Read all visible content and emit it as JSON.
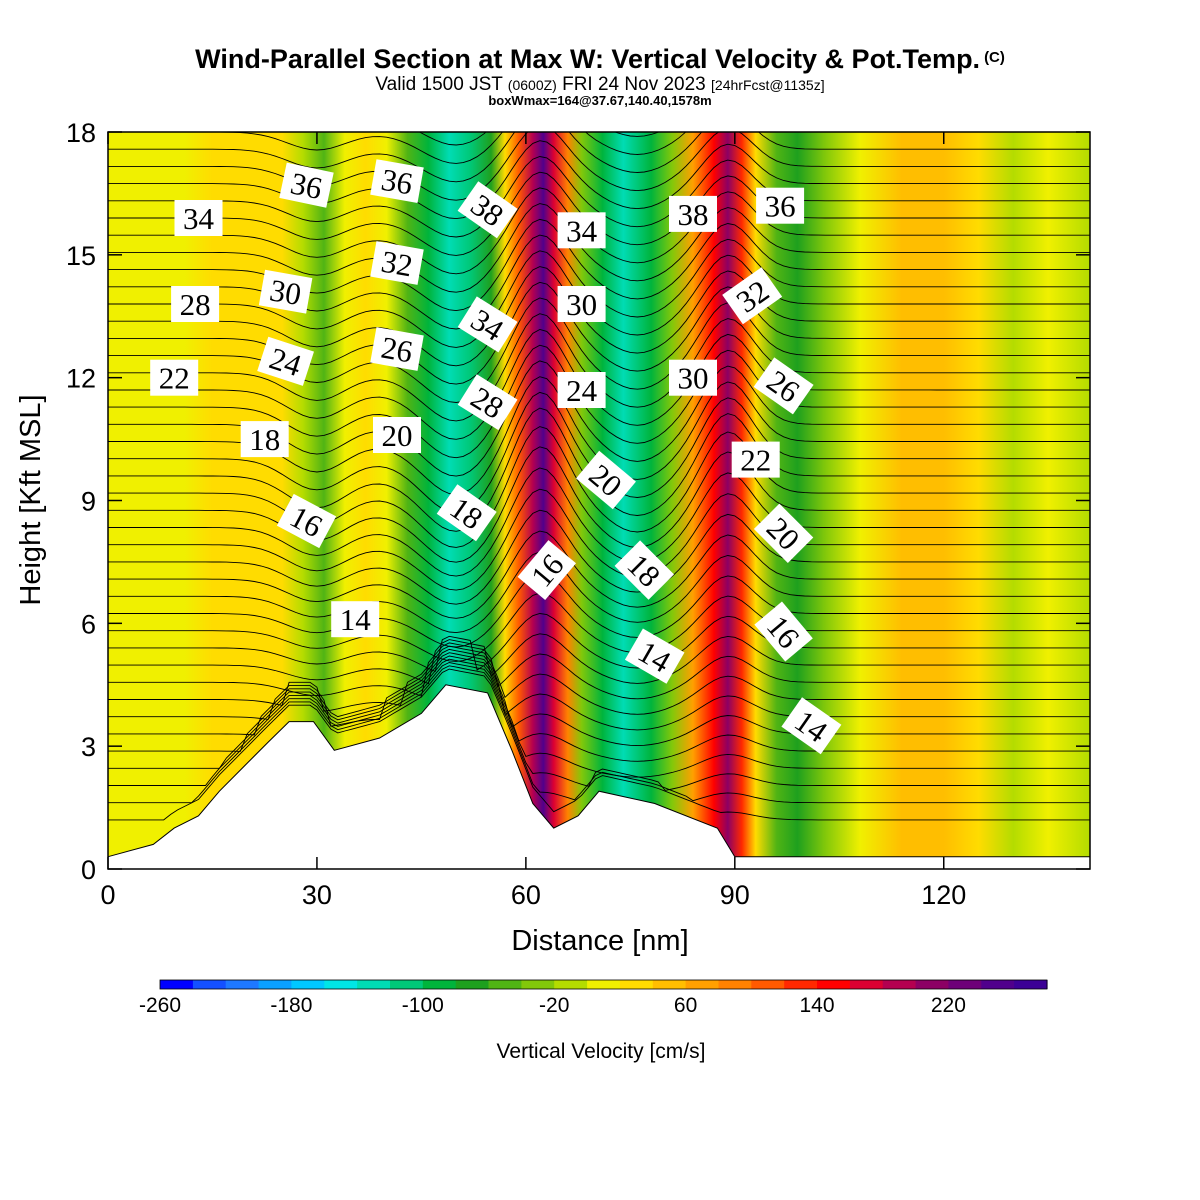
{
  "title": "Wind-Parallel Section at Max W: Vertical Velocity & Pot.Temp.",
  "copyright_mark": "(C)",
  "valid_main": "Valid 1500 JST",
  "valid_utc": "(0600Z)",
  "valid_date": "FRI 24 Nov 2023",
  "forecast_info": "[24hrFcst@1135z]",
  "box_info": "boxWmax=164@37.67,140.40,1578m",
  "chart_data": {
    "type": "heatmap",
    "xlabel": "Distance [nm]",
    "ylabel": "Height [Kft MSL]",
    "xlim": [
      0,
      141
    ],
    "ylim": [
      0,
      18
    ],
    "x_ticks": [
      "0",
      "30",
      "60",
      "90",
      "120"
    ],
    "y_ticks": [
      "0",
      "3",
      "6",
      "9",
      "12",
      "15",
      "18"
    ],
    "colorbar": {
      "label": "Vertical Velocity [cm/s]",
      "tick_labels": [
        "-260",
        "-180",
        "-100",
        "-20",
        "60",
        "140",
        "220"
      ],
      "min": -260,
      "max": 280,
      "step": 20,
      "colors": [
        "#0000ff",
        "#1450ff",
        "#1e78ff",
        "#0aa0ff",
        "#00c8ff",
        "#00e6e6",
        "#00dcb4",
        "#00c878",
        "#00b43c",
        "#1ea01e",
        "#50b414",
        "#82c80a",
        "#b4dc00",
        "#f0f000",
        "#ffdc00",
        "#ffbe00",
        "#ffa000",
        "#ff8200",
        "#ff5a00",
        "#ff2800",
        "#ff0000",
        "#dc0032",
        "#b40050",
        "#8c0064",
        "#6e0078",
        "#50008c",
        "#3c0096"
      ]
    },
    "vertical_velocity_columns": [
      {
        "x": 3,
        "w": 0
      },
      {
        "x": 7,
        "w": 15
      },
      {
        "x": 11,
        "w": 10
      },
      {
        "x": 15,
        "w": 20
      },
      {
        "x": 20,
        "w": 35
      },
      {
        "x": 25,
        "w": 30
      },
      {
        "x": 28,
        "w": -20
      },
      {
        "x": 31,
        "w": -45
      },
      {
        "x": 34,
        "w": 0
      },
      {
        "x": 37,
        "w": 25
      },
      {
        "x": 40,
        "w": 15
      },
      {
        "x": 43,
        "w": -50
      },
      {
        "x": 46,
        "w": -90
      },
      {
        "x": 49,
        "w": -140
      },
      {
        "x": 52,
        "w": -120
      },
      {
        "x": 55,
        "w": -70
      },
      {
        "x": 57,
        "w": 20
      },
      {
        "x": 59,
        "w": 110
      },
      {
        "x": 61,
        "w": 190
      },
      {
        "x": 62.5,
        "w": 240
      },
      {
        "x": 64,
        "w": 170
      },
      {
        "x": 66,
        "w": 80
      },
      {
        "x": 68,
        "w": -30
      },
      {
        "x": 71,
        "w": -90
      },
      {
        "x": 74,
        "w": -130
      },
      {
        "x": 78,
        "w": -90
      },
      {
        "x": 81,
        "w": -30
      },
      {
        "x": 84,
        "w": 60
      },
      {
        "x": 87,
        "w": 150
      },
      {
        "x": 89,
        "w": 200
      },
      {
        "x": 91,
        "w": 120
      },
      {
        "x": 93,
        "w": 30
      },
      {
        "x": 96,
        "w": -50
      },
      {
        "x": 99,
        "w": -80
      },
      {
        "x": 103,
        "w": -40
      },
      {
        "x": 108,
        "w": 10
      },
      {
        "x": 114,
        "w": 40
      },
      {
        "x": 120,
        "w": 50
      },
      {
        "x": 125,
        "w": 20
      },
      {
        "x": 130,
        "w": -10
      },
      {
        "x": 135,
        "w": 0
      },
      {
        "x": 141,
        "w": -10
      }
    ],
    "terrain_height_kft": [
      {
        "x": 0,
        "h": 0.3
      },
      {
        "x": 6.5,
        "h": 0.6
      },
      {
        "x": 9.5,
        "h": 1.0
      },
      {
        "x": 13,
        "h": 1.3
      },
      {
        "x": 16,
        "h": 1.9
      },
      {
        "x": 19.5,
        "h": 2.5
      },
      {
        "x": 23,
        "h": 3.1
      },
      {
        "x": 26,
        "h": 3.6
      },
      {
        "x": 29.5,
        "h": 3.6
      },
      {
        "x": 32.5,
        "h": 2.9
      },
      {
        "x": 39,
        "h": 3.2
      },
      {
        "x": 42,
        "h": 3.5
      },
      {
        "x": 45,
        "h": 3.8
      },
      {
        "x": 48.5,
        "h": 4.5
      },
      {
        "x": 54.5,
        "h": 4.3
      },
      {
        "x": 58,
        "h": 2.9
      },
      {
        "x": 61,
        "h": 1.6
      },
      {
        "x": 64,
        "h": 1.0
      },
      {
        "x": 67.5,
        "h": 1.3
      },
      {
        "x": 70.5,
        "h": 1.9
      },
      {
        "x": 78.5,
        "h": 1.6
      },
      {
        "x": 87.5,
        "h": 1.0
      },
      {
        "x": 90,
        "h": 0.3
      },
      {
        "x": 141,
        "h": 0.3
      }
    ],
    "isentrope_labels": [
      {
        "text": "34",
        "x": 13,
        "y": 15.9,
        "angle": 0
      },
      {
        "text": "36",
        "x": 28.5,
        "y": 16.7,
        "angle": 12
      },
      {
        "text": "36",
        "x": 41.5,
        "y": 16.8,
        "angle": 10
      },
      {
        "text": "38",
        "x": 54.5,
        "y": 16.1,
        "angle": 35
      },
      {
        "text": "34",
        "x": 68,
        "y": 15.6,
        "angle": 0
      },
      {
        "text": "38",
        "x": 84,
        "y": 16.0,
        "angle": 0
      },
      {
        "text": "36",
        "x": 96.5,
        "y": 16.2,
        "angle": 0
      },
      {
        "text": "28",
        "x": 12.5,
        "y": 13.8,
        "angle": 0
      },
      {
        "text": "30",
        "x": 25.5,
        "y": 14.1,
        "angle": 10
      },
      {
        "text": "32",
        "x": 41.5,
        "y": 14.8,
        "angle": 10
      },
      {
        "text": "34",
        "x": 54.5,
        "y": 13.3,
        "angle": 32
      },
      {
        "text": "30",
        "x": 68,
        "y": 13.8,
        "angle": 0
      },
      {
        "text": "32",
        "x": 92.5,
        "y": 14.0,
        "angle": -35
      },
      {
        "text": "22",
        "x": 9.5,
        "y": 12.0,
        "angle": 0
      },
      {
        "text": "24",
        "x": 25.5,
        "y": 12.4,
        "angle": 18
      },
      {
        "text": "26",
        "x": 41.5,
        "y": 12.7,
        "angle": 10
      },
      {
        "text": "28",
        "x": 54.5,
        "y": 11.4,
        "angle": 32
      },
      {
        "text": "24",
        "x": 68,
        "y": 11.7,
        "angle": 0
      },
      {
        "text": "30",
        "x": 84,
        "y": 12.0,
        "angle": 0
      },
      {
        "text": "26",
        "x": 97,
        "y": 11.8,
        "angle": 35
      },
      {
        "text": "18",
        "x": 22.5,
        "y": 10.5,
        "angle": 0
      },
      {
        "text": "20",
        "x": 41.5,
        "y": 10.6,
        "angle": 0
      },
      {
        "text": "20",
        "x": 71.5,
        "y": 9.5,
        "angle": 40
      },
      {
        "text": "22",
        "x": 93,
        "y": 10.0,
        "angle": 0
      },
      {
        "text": "16",
        "x": 28.5,
        "y": 8.5,
        "angle": 28
      },
      {
        "text": "18",
        "x": 51.5,
        "y": 8.7,
        "angle": 35
      },
      {
        "text": "16",
        "x": 63,
        "y": 7.3,
        "angle": -50
      },
      {
        "text": "18",
        "x": 77,
        "y": 7.3,
        "angle": 45
      },
      {
        "text": "20",
        "x": 97,
        "y": 8.2,
        "angle": 45
      },
      {
        "text": "14",
        "x": 35.5,
        "y": 6.1,
        "angle": 0
      },
      {
        "text": "14",
        "x": 78.5,
        "y": 5.2,
        "angle": 30
      },
      {
        "text": "16",
        "x": 97,
        "y": 5.8,
        "angle": 50
      },
      {
        "text": "14",
        "x": 101,
        "y": 3.5,
        "angle": 35
      }
    ]
  }
}
